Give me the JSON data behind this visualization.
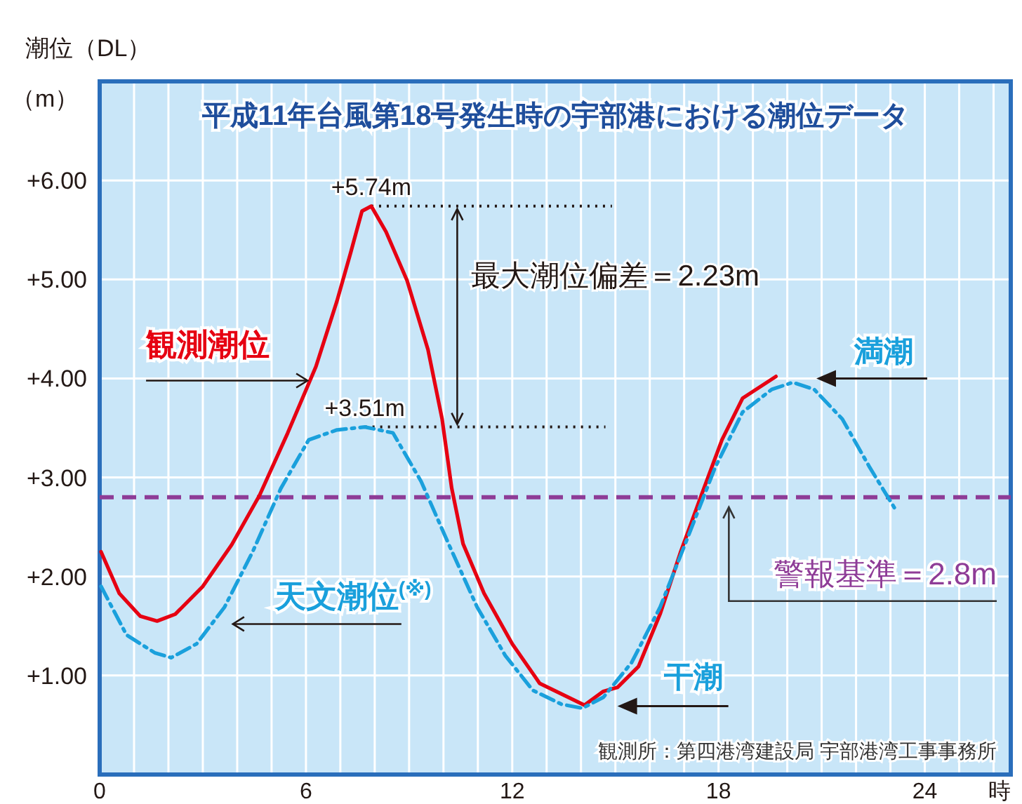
{
  "chart_data": {
    "type": "line",
    "title": "平成11年台風第18号発生時の宇部港における潮位データ",
    "ylabel": "潮位（DL）（m）",
    "xlabel": "時",
    "xlim": [
      0,
      26.5
    ],
    "ylim": [
      0,
      7
    ],
    "xticks": [
      0,
      6,
      12,
      18,
      24
    ],
    "yticks": [
      {
        "value": 1,
        "label": "+1.00"
      },
      {
        "value": 2,
        "label": "+2.00"
      },
      {
        "value": 3,
        "label": "+3.00"
      },
      {
        "value": 4,
        "label": "+4.00"
      },
      {
        "value": 5,
        "label": "+5.00"
      },
      {
        "value": 6,
        "label": "+6.00"
      }
    ],
    "grid": true,
    "legend": false,
    "series": [
      {
        "name": "観測潮位",
        "color": "#e60012",
        "line_style": "solid",
        "x": [
          0.04,
          0.57,
          1.18,
          1.67,
          2.2,
          3.0,
          3.84,
          4.65,
          5.47,
          6.29,
          6.9,
          7.3,
          7.63,
          7.9,
          8.33,
          8.94,
          9.55,
          9.96,
          10.24,
          10.57,
          11.18,
          12.0,
          12.8,
          13.63,
          14.1,
          14.65,
          15.06,
          15.67,
          16.3,
          16.9,
          17.5,
          18.1,
          18.7,
          19.67
        ],
        "values": [
          2.25,
          1.83,
          1.6,
          1.55,
          1.62,
          1.9,
          2.32,
          2.82,
          3.45,
          4.12,
          4.78,
          5.27,
          5.69,
          5.74,
          5.48,
          4.99,
          4.29,
          3.59,
          2.89,
          2.33,
          1.83,
          1.32,
          0.92,
          0.78,
          0.7,
          0.84,
          0.88,
          1.09,
          1.62,
          2.25,
          2.82,
          3.38,
          3.8,
          4.02
        ]
      },
      {
        "name": "天文潮位$^{(※)}$",
        "color": "#1aa0dc",
        "line_style": "dashdot",
        "x": [
          0.04,
          0.78,
          1.6,
          2.08,
          2.82,
          3.63,
          4.45,
          5.27,
          6.08,
          6.9,
          7.71,
          8.53,
          9.35,
          10.16,
          10.98,
          11.8,
          12.6,
          13.43,
          14.04,
          14.65,
          15.47,
          16.3,
          17.1,
          17.9,
          18.7,
          19.55,
          20.16,
          20.78,
          21.6,
          22.4,
          23.14
        ],
        "values": [
          1.9,
          1.41,
          1.23,
          1.18,
          1.32,
          1.69,
          2.25,
          2.89,
          3.38,
          3.48,
          3.51,
          3.45,
          2.96,
          2.32,
          1.69,
          1.2,
          0.85,
          0.71,
          0.67,
          0.78,
          1.13,
          1.69,
          2.39,
          3.1,
          3.66,
          3.89,
          3.96,
          3.89,
          3.59,
          3.1,
          2.68
        ]
      }
    ],
    "ref_lines": [
      {
        "axis": "y",
        "value": 2.8,
        "label": "警報基準＝2.8m",
        "color": "#8e3c97",
        "line_style": "dashed"
      }
    ],
    "annotations": [
      {
        "text": "+5.74m",
        "x": 7.9,
        "y": 5.74
      },
      {
        "text": "+3.51m",
        "x": 7.71,
        "y": 3.51
      },
      "最大潮位偏差＝2.23m",
      {
        "text": "満潮",
        "x": 20.6,
        "y": 4.0
      },
      "干潮",
      "観測所：第四港湾建設局 宇部港湾工事事務所"
    ]
  }
}
